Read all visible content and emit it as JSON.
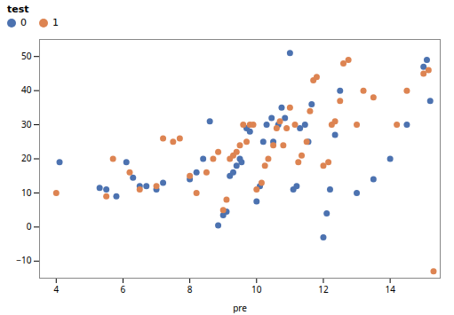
{
  "chart_data": {
    "type": "scatter",
    "xlabel": "pre",
    "xlim": [
      3.5,
      15.5
    ],
    "ylim": [
      -15,
      55
    ],
    "xticks": [
      4,
      6,
      8,
      10,
      12,
      14
    ],
    "yticks": [
      -10,
      0,
      10,
      20,
      30,
      40,
      50
    ],
    "grid": false,
    "legend": "upper left",
    "legend_title": "test",
    "series": [
      {
        "name": "0",
        "color": "#4C72B0",
        "x": [
          4.1,
          5.3,
          5.5,
          5.8,
          6.1,
          6.3,
          6.5,
          6.7,
          7.0,
          7.2,
          8.0,
          8.2,
          8.4,
          8.6,
          8.85,
          9.0,
          9.1,
          9.2,
          9.3,
          9.4,
          9.5,
          9.55,
          9.7,
          9.8,
          10.0,
          10.1,
          10.2,
          10.3,
          10.45,
          10.5,
          10.65,
          10.75,
          10.85,
          11.0,
          11.1,
          11.2,
          11.3,
          11.45,
          11.55,
          11.65,
          12.0,
          12.1,
          12.2,
          12.35,
          12.5,
          13.0,
          13.5,
          14.0,
          14.5,
          15.0,
          15.1,
          15.2
        ],
        "y": [
          19.0,
          11.5,
          11.0,
          9.0,
          19.0,
          14.5,
          12.0,
          12.0,
          11.0,
          13.0,
          14.0,
          16.0,
          20.0,
          31.0,
          0.5,
          3.5,
          4.5,
          15.0,
          16.0,
          18.0,
          20.0,
          19.0,
          29.0,
          28.0,
          7.5,
          12.0,
          25.0,
          30.0,
          32.0,
          25.0,
          30.0,
          35.0,
          32.0,
          51.0,
          11.0,
          12.0,
          29.0,
          30.0,
          25.0,
          36.0,
          -3.0,
          4.0,
          11.0,
          27.0,
          40.0,
          10.0,
          14.0,
          20.0,
          30.0,
          47.0,
          49.0,
          37.0
        ]
      },
      {
        "name": "1",
        "color": "#DD8452",
        "x": [
          4.0,
          5.5,
          5.7,
          6.2,
          6.5,
          7.0,
          7.2,
          7.5,
          7.7,
          8.0,
          8.2,
          8.5,
          8.7,
          8.85,
          9.0,
          9.1,
          9.2,
          9.3,
          9.4,
          9.5,
          9.6,
          9.7,
          9.8,
          9.9,
          10.0,
          10.15,
          10.25,
          10.35,
          10.5,
          10.6,
          10.7,
          10.8,
          10.9,
          11.0,
          11.15,
          11.25,
          11.35,
          11.5,
          11.6,
          11.7,
          11.8,
          12.0,
          12.15,
          12.25,
          12.35,
          12.5,
          12.6,
          12.75,
          13.0,
          13.2,
          13.5,
          14.2,
          14.5,
          15.0,
          15.15,
          15.3
        ],
        "y": [
          10.0,
          9.0,
          20.0,
          16.0,
          11.0,
          12.0,
          26.0,
          25.0,
          26.0,
          15.0,
          10.0,
          16.0,
          20.0,
          22.0,
          5.0,
          8.0,
          20.0,
          21.0,
          22.0,
          24.0,
          30.0,
          25.0,
          30.0,
          30.0,
          11.0,
          13.0,
          18.0,
          20.0,
          24.0,
          29.0,
          31.0,
          24.0,
          29.0,
          35.0,
          30.0,
          19.0,
          21.0,
          25.0,
          34.0,
          43.0,
          44.0,
          18.0,
          19.0,
          30.0,
          31.0,
          37.0,
          48.0,
          49.0,
          30.0,
          40.0,
          38.0,
          30.0,
          40.0,
          45.0,
          46.0,
          -13.0
        ]
      }
    ]
  }
}
